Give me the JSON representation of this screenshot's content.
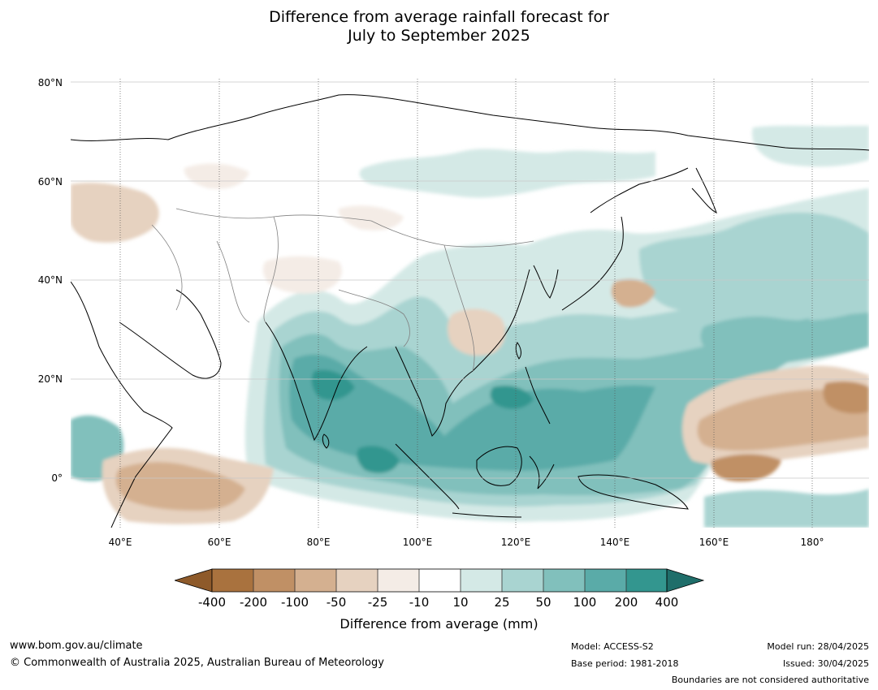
{
  "title_line1": "Difference from average rainfall forecast for",
  "title_line2": "July to September 2025",
  "map": {
    "lat_labels": [
      "80°N",
      "60°N",
      "40°N",
      "20°N",
      "0°"
    ],
    "lon_labels": [
      "40°E",
      "60°E",
      "80°E",
      "100°E",
      "120°E",
      "140°E",
      "160°E",
      "180°"
    ],
    "extent": {
      "lon": [
        30,
        191
      ],
      "lat": [
        -10,
        80
      ]
    }
  },
  "colorbar": {
    "ticks": [
      "-400",
      "-200",
      "-100",
      "-50",
      "-25",
      "-10",
      "10",
      "25",
      "50",
      "100",
      "200",
      "400"
    ],
    "colors": {
      "below_-400": "#8e5a2a",
      "-400_-200": "#a9723e",
      "-200_-100": "#c09065",
      "-100_-50": "#d4b090",
      "-50_-25": "#e6d2c0",
      "-25_-10": "#f4ece6",
      "-10_10": "#ffffff",
      "10_25": "#d4e9e6",
      "25_50": "#a9d4d1",
      "50_100": "#81c0bc",
      "100_200": "#5aaba8",
      "200_400": "#33968f",
      "above_400": "#1f6e6a"
    },
    "label": "Difference from average (mm)"
  },
  "footer": {
    "url": "www.bom.gov.au/climate",
    "copyright": "© Commonwealth of Australia 2025, Australian Bureau of Meteorology",
    "model": "Model: ACCESS-S2",
    "base_period": "Base period: 1981-2018",
    "model_run": "Model run: 28/04/2025",
    "issued": "Issued: 30/04/2025",
    "disclaimer": "Boundaries are not considered authoritative"
  }
}
